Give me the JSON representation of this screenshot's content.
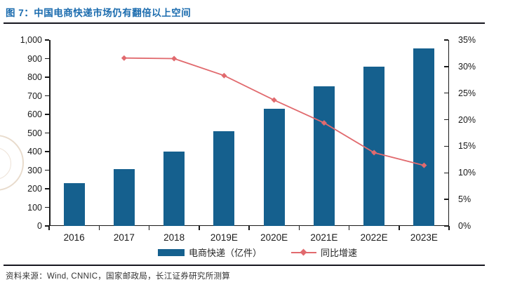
{
  "header": {
    "title": "图 7：中国电商快递市场仍有翻倍以上空间"
  },
  "footer": {
    "source": "资料来源：Wind, CNNIC，国家邮政局，长江证券研究所测算"
  },
  "colors": {
    "bar": "#15608E",
    "line": "#E16A6E",
    "title": "#1A6BAE",
    "axis": "#1a1a1a",
    "rule": "#16161f"
  },
  "chart_data": {
    "type": "bar",
    "subtype": "bar+line dual axis",
    "categories": [
      "2016",
      "2017",
      "2018",
      "2019E",
      "2020E",
      "2021E",
      "2022E",
      "2023E"
    ],
    "series": [
      {
        "name": "电商快递（亿件）",
        "type": "bar",
        "axis": "left",
        "values": [
          230,
          305,
          400,
          510,
          630,
          750,
          855,
          955
        ]
      },
      {
        "name": "同比增速",
        "type": "line",
        "axis": "right",
        "values": [
          null,
          31.6,
          31.5,
          28.3,
          23.7,
          19.4,
          13.8,
          11.4
        ]
      }
    ],
    "left_axis": {
      "min": 0,
      "max": 1000,
      "step": 100,
      "ticks": [
        "0",
        "100",
        "200",
        "300",
        "400",
        "500",
        "600",
        "700",
        "800",
        "900",
        "1,000"
      ]
    },
    "right_axis": {
      "min": 0,
      "max": 35,
      "step": 5,
      "ticks": [
        "0%",
        "5%",
        "10%",
        "15%",
        "20%",
        "25%",
        "30%",
        "35%"
      ]
    },
    "grid": false,
    "legend_position": "bottom",
    "title": "中国电商快递市场仍有翻倍以上空间"
  }
}
